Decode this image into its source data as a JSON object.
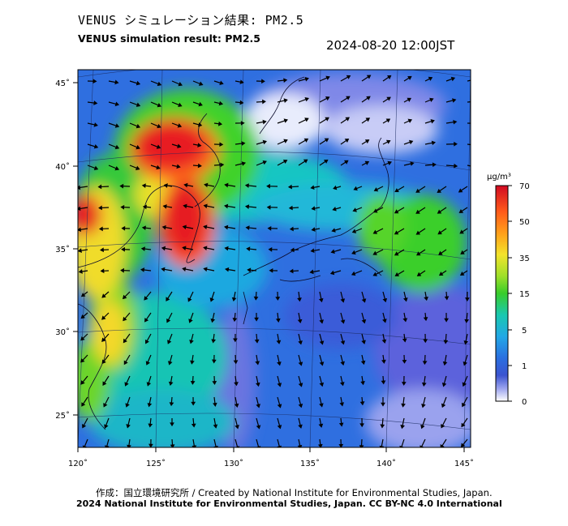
{
  "header": {
    "title_jp": "VENUS シミュレーション結果: PM2.5",
    "title_en": "VENUS simulation result: PM2.5",
    "timestamp": "2024-08-20 12:00JST"
  },
  "map": {
    "lon_ticks": [
      "120˚",
      "125˚",
      "130˚",
      "135˚",
      "140˚",
      "145˚"
    ],
    "lat_ticks": [
      "45˚",
      "40˚",
      "35˚",
      "30˚",
      "25˚"
    ]
  },
  "colorbar": {
    "unit": "μg/m³",
    "levels": [
      "70",
      "50",
      "35",
      "15",
      "5",
      "1",
      "0"
    ],
    "colors": [
      "#e8102a",
      "#ff8c1a",
      "#f5e22a",
      "#4cd21e",
      "#14c8c0",
      "#2a8fe6",
      "#5a55d8",
      "#ffffff"
    ]
  },
  "footer": {
    "created_by": "作成：国立環境研究所 / Created by National Institute for Environmental Studies, Japan.",
    "copyright": "2024 National Institute for Environmental Studies, Japan. CC BY-NC 4.0 International"
  }
}
